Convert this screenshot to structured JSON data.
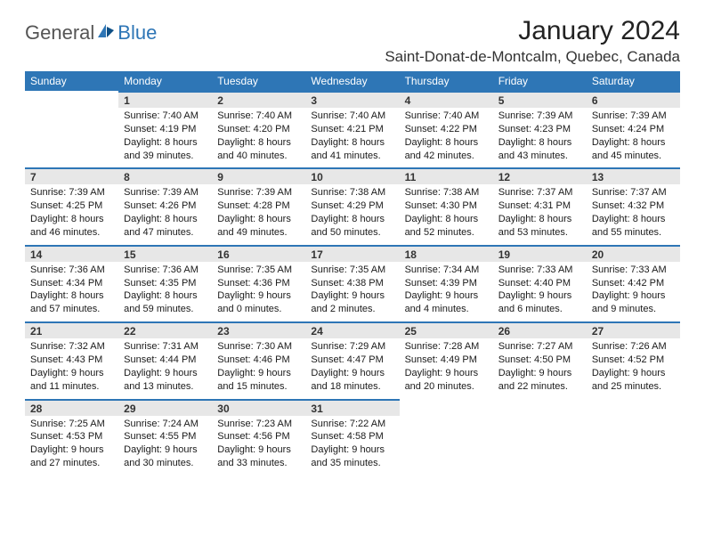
{
  "logo": {
    "general": "General",
    "blue": "Blue"
  },
  "title": "January 2024",
  "location": "Saint-Donat-de-Montcalm, Quebec, Canada",
  "colors": {
    "header_bg": "#2e76b6",
    "header_text": "#ffffff",
    "daynum_bg": "#e7e7e7",
    "daynum_border": "#2e76b6",
    "page_bg": "#ffffff"
  },
  "daynames": [
    "Sunday",
    "Monday",
    "Tuesday",
    "Wednesday",
    "Thursday",
    "Friday",
    "Saturday"
  ],
  "weeks": [
    [
      {
        "n": "",
        "sr": "",
        "ss": "",
        "d1": "",
        "d2": ""
      },
      {
        "n": "1",
        "sr": "Sunrise: 7:40 AM",
        "ss": "Sunset: 4:19 PM",
        "d1": "Daylight: 8 hours",
        "d2": "and 39 minutes."
      },
      {
        "n": "2",
        "sr": "Sunrise: 7:40 AM",
        "ss": "Sunset: 4:20 PM",
        "d1": "Daylight: 8 hours",
        "d2": "and 40 minutes."
      },
      {
        "n": "3",
        "sr": "Sunrise: 7:40 AM",
        "ss": "Sunset: 4:21 PM",
        "d1": "Daylight: 8 hours",
        "d2": "and 41 minutes."
      },
      {
        "n": "4",
        "sr": "Sunrise: 7:40 AM",
        "ss": "Sunset: 4:22 PM",
        "d1": "Daylight: 8 hours",
        "d2": "and 42 minutes."
      },
      {
        "n": "5",
        "sr": "Sunrise: 7:39 AM",
        "ss": "Sunset: 4:23 PM",
        "d1": "Daylight: 8 hours",
        "d2": "and 43 minutes."
      },
      {
        "n": "6",
        "sr": "Sunrise: 7:39 AM",
        "ss": "Sunset: 4:24 PM",
        "d1": "Daylight: 8 hours",
        "d2": "and 45 minutes."
      }
    ],
    [
      {
        "n": "7",
        "sr": "Sunrise: 7:39 AM",
        "ss": "Sunset: 4:25 PM",
        "d1": "Daylight: 8 hours",
        "d2": "and 46 minutes."
      },
      {
        "n": "8",
        "sr": "Sunrise: 7:39 AM",
        "ss": "Sunset: 4:26 PM",
        "d1": "Daylight: 8 hours",
        "d2": "and 47 minutes."
      },
      {
        "n": "9",
        "sr": "Sunrise: 7:39 AM",
        "ss": "Sunset: 4:28 PM",
        "d1": "Daylight: 8 hours",
        "d2": "and 49 minutes."
      },
      {
        "n": "10",
        "sr": "Sunrise: 7:38 AM",
        "ss": "Sunset: 4:29 PM",
        "d1": "Daylight: 8 hours",
        "d2": "and 50 minutes."
      },
      {
        "n": "11",
        "sr": "Sunrise: 7:38 AM",
        "ss": "Sunset: 4:30 PM",
        "d1": "Daylight: 8 hours",
        "d2": "and 52 minutes."
      },
      {
        "n": "12",
        "sr": "Sunrise: 7:37 AM",
        "ss": "Sunset: 4:31 PM",
        "d1": "Daylight: 8 hours",
        "d2": "and 53 minutes."
      },
      {
        "n": "13",
        "sr": "Sunrise: 7:37 AM",
        "ss": "Sunset: 4:32 PM",
        "d1": "Daylight: 8 hours",
        "d2": "and 55 minutes."
      }
    ],
    [
      {
        "n": "14",
        "sr": "Sunrise: 7:36 AM",
        "ss": "Sunset: 4:34 PM",
        "d1": "Daylight: 8 hours",
        "d2": "and 57 minutes."
      },
      {
        "n": "15",
        "sr": "Sunrise: 7:36 AM",
        "ss": "Sunset: 4:35 PM",
        "d1": "Daylight: 8 hours",
        "d2": "and 59 minutes."
      },
      {
        "n": "16",
        "sr": "Sunrise: 7:35 AM",
        "ss": "Sunset: 4:36 PM",
        "d1": "Daylight: 9 hours",
        "d2": "and 0 minutes."
      },
      {
        "n": "17",
        "sr": "Sunrise: 7:35 AM",
        "ss": "Sunset: 4:38 PM",
        "d1": "Daylight: 9 hours",
        "d2": "and 2 minutes."
      },
      {
        "n": "18",
        "sr": "Sunrise: 7:34 AM",
        "ss": "Sunset: 4:39 PM",
        "d1": "Daylight: 9 hours",
        "d2": "and 4 minutes."
      },
      {
        "n": "19",
        "sr": "Sunrise: 7:33 AM",
        "ss": "Sunset: 4:40 PM",
        "d1": "Daylight: 9 hours",
        "d2": "and 6 minutes."
      },
      {
        "n": "20",
        "sr": "Sunrise: 7:33 AM",
        "ss": "Sunset: 4:42 PM",
        "d1": "Daylight: 9 hours",
        "d2": "and 9 minutes."
      }
    ],
    [
      {
        "n": "21",
        "sr": "Sunrise: 7:32 AM",
        "ss": "Sunset: 4:43 PM",
        "d1": "Daylight: 9 hours",
        "d2": "and 11 minutes."
      },
      {
        "n": "22",
        "sr": "Sunrise: 7:31 AM",
        "ss": "Sunset: 4:44 PM",
        "d1": "Daylight: 9 hours",
        "d2": "and 13 minutes."
      },
      {
        "n": "23",
        "sr": "Sunrise: 7:30 AM",
        "ss": "Sunset: 4:46 PM",
        "d1": "Daylight: 9 hours",
        "d2": "and 15 minutes."
      },
      {
        "n": "24",
        "sr": "Sunrise: 7:29 AM",
        "ss": "Sunset: 4:47 PM",
        "d1": "Daylight: 9 hours",
        "d2": "and 18 minutes."
      },
      {
        "n": "25",
        "sr": "Sunrise: 7:28 AM",
        "ss": "Sunset: 4:49 PM",
        "d1": "Daylight: 9 hours",
        "d2": "and 20 minutes."
      },
      {
        "n": "26",
        "sr": "Sunrise: 7:27 AM",
        "ss": "Sunset: 4:50 PM",
        "d1": "Daylight: 9 hours",
        "d2": "and 22 minutes."
      },
      {
        "n": "27",
        "sr": "Sunrise: 7:26 AM",
        "ss": "Sunset: 4:52 PM",
        "d1": "Daylight: 9 hours",
        "d2": "and 25 minutes."
      }
    ],
    [
      {
        "n": "28",
        "sr": "Sunrise: 7:25 AM",
        "ss": "Sunset: 4:53 PM",
        "d1": "Daylight: 9 hours",
        "d2": "and 27 minutes."
      },
      {
        "n": "29",
        "sr": "Sunrise: 7:24 AM",
        "ss": "Sunset: 4:55 PM",
        "d1": "Daylight: 9 hours",
        "d2": "and 30 minutes."
      },
      {
        "n": "30",
        "sr": "Sunrise: 7:23 AM",
        "ss": "Sunset: 4:56 PM",
        "d1": "Daylight: 9 hours",
        "d2": "and 33 minutes."
      },
      {
        "n": "31",
        "sr": "Sunrise: 7:22 AM",
        "ss": "Sunset: 4:58 PM",
        "d1": "Daylight: 9 hours",
        "d2": "and 35 minutes."
      },
      {
        "n": "",
        "sr": "",
        "ss": "",
        "d1": "",
        "d2": ""
      },
      {
        "n": "",
        "sr": "",
        "ss": "",
        "d1": "",
        "d2": ""
      },
      {
        "n": "",
        "sr": "",
        "ss": "",
        "d1": "",
        "d2": ""
      }
    ]
  ]
}
